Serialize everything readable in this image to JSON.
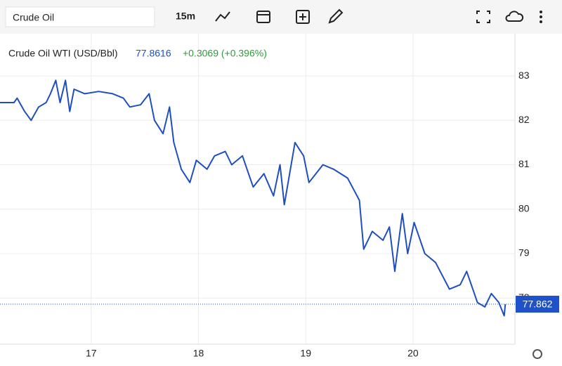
{
  "toolbar": {
    "search": "Crude Oil",
    "interval": "15m"
  },
  "chart_data": {
    "type": "line",
    "legend_name": "Crude Oil WTI (USD/Bbl)",
    "legend_price": "77.8616",
    "legend_change": "+0.3069 (+0.396%)",
    "last_price": 77.862,
    "xlim": [
      16.15,
      20.95
    ],
    "xticks": [
      17,
      18,
      19,
      20
    ],
    "ylim": [
      76.96,
      83.95
    ],
    "yticks": [
      78,
      79,
      80,
      81,
      82,
      83
    ],
    "grid": true,
    "series": [
      {
        "name": "Crude Oil WTI (USD/Bbl)",
        "color": "#1f4fbf",
        "x": [
          16.15,
          16.28,
          16.31,
          16.38,
          16.44,
          16.51,
          16.58,
          16.62,
          16.67,
          16.71,
          16.76,
          16.8,
          16.84,
          16.94,
          17.07,
          17.2,
          17.3,
          17.36,
          17.46,
          17.54,
          17.59,
          17.67,
          17.73,
          17.77,
          17.84,
          17.92,
          17.98,
          18.08,
          18.15,
          18.25,
          18.31,
          18.41,
          18.51,
          18.61,
          18.7,
          18.76,
          18.8,
          18.9,
          18.98,
          19.03,
          19.16,
          19.26,
          19.39,
          19.5,
          19.54,
          19.62,
          19.72,
          19.78,
          19.83,
          19.9,
          19.95,
          20.01,
          20.11,
          20.21,
          20.34,
          20.44,
          20.5,
          20.6,
          20.67,
          20.73,
          20.8,
          20.85,
          20.86
        ],
        "values": [
          82.4,
          82.4,
          82.5,
          82.2,
          82.0,
          82.3,
          82.4,
          82.6,
          82.9,
          82.4,
          82.9,
          82.2,
          82.7,
          82.6,
          82.65,
          82.6,
          82.5,
          82.3,
          82.35,
          82.6,
          82.0,
          81.7,
          82.3,
          81.5,
          80.9,
          80.6,
          81.1,
          80.9,
          81.2,
          81.3,
          81.0,
          81.2,
          80.5,
          80.8,
          80.3,
          81.0,
          80.1,
          81.5,
          81.2,
          80.6,
          81.0,
          80.9,
          80.7,
          80.2,
          79.1,
          79.5,
          79.3,
          79.6,
          78.6,
          79.9,
          79.0,
          79.7,
          79.0,
          78.8,
          78.2,
          78.3,
          78.6,
          77.9,
          77.8,
          78.1,
          77.9,
          77.6,
          77.86
        ]
      }
    ]
  }
}
